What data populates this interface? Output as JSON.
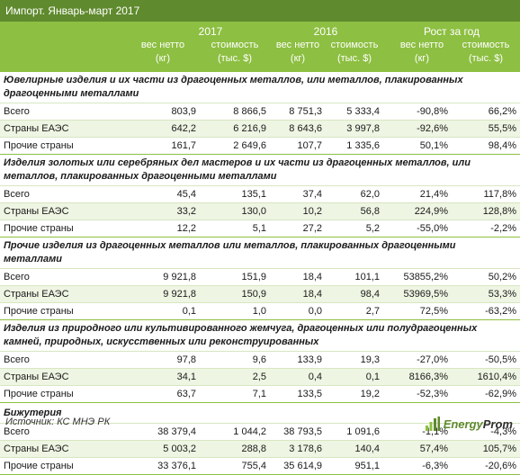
{
  "title": "Импорт. Январь-март 2017",
  "header": {
    "groups": [
      "2017",
      "2016",
      "Рост за год"
    ],
    "col_a": "вес нетто",
    "col_b": "стоимость",
    "unit_a": "(кг)",
    "unit_b": "(тыс. $)"
  },
  "sections": [
    {
      "category": "Ювелирные изделия и их части из драгоценных металлов, или металлов, плакированных драгоценными металлами",
      "rows": [
        {
          "label": "Всего",
          "v": [
            "803,9",
            "8 866,5",
            "8 751,3",
            "5 333,4",
            "-90,8%",
            "66,2%"
          ]
        },
        {
          "label": "Страны ЕАЭС",
          "v": [
            "642,2",
            "6 216,9",
            "8 643,6",
            "3 997,8",
            "-92,6%",
            "55,5%"
          ]
        },
        {
          "label": "Прочие страны",
          "v": [
            "161,7",
            "2 649,6",
            "107,7",
            "1 335,6",
            "50,1%",
            "98,4%"
          ]
        }
      ]
    },
    {
      "category": "Изделия золотых или серебряных дел мастеров и их части из драгоценных металлов, или металлов, плакированных драгоценными металлами",
      "rows": [
        {
          "label": "Всего",
          "v": [
            "45,4",
            "135,1",
            "37,4",
            "62,0",
            "21,4%",
            "117,8%"
          ]
        },
        {
          "label": "Страны ЕАЭС",
          "v": [
            "33,2",
            "130,0",
            "10,2",
            "56,8",
            "224,9%",
            "128,8%"
          ]
        },
        {
          "label": "Прочие страны",
          "v": [
            "12,2",
            "5,1",
            "27,2",
            "5,2",
            "-55,0%",
            "-2,2%"
          ]
        }
      ]
    },
    {
      "category": "Прочие изделия из драгоценных металлов или металлов, плакированных драгоценными металлами",
      "rows": [
        {
          "label": "Всего",
          "v": [
            "9 921,8",
            "151,9",
            "18,4",
            "101,1",
            "53855,2%",
            "50,2%"
          ]
        },
        {
          "label": "Страны ЕАЭС",
          "v": [
            "9 921,8",
            "150,9",
            "18,4",
            "98,4",
            "53969,5%",
            "53,3%"
          ]
        },
        {
          "label": "Прочие страны",
          "v": [
            "0,1",
            "1,0",
            "0,0",
            "2,7",
            "72,5%",
            "-63,2%"
          ]
        }
      ]
    },
    {
      "category": "Изделия из природного или культивированного жемчуга, драгоценных или полудрагоценных камней, природных, искусственных или реконструированных",
      "rows": [
        {
          "label": "Всего",
          "v": [
            "97,8",
            "9,6",
            "133,9",
            "19,3",
            "-27,0%",
            "-50,5%"
          ]
        },
        {
          "label": "Страны ЕАЭС",
          "v": [
            "34,1",
            "2,5",
            "0,4",
            "0,1",
            "8166,3%",
            "1610,4%"
          ]
        },
        {
          "label": "Прочие страны",
          "v": [
            "63,7",
            "7,1",
            "133,5",
            "19,2",
            "-52,3%",
            "-62,9%"
          ]
        }
      ]
    },
    {
      "category": "Бижутерия",
      "rows": [
        {
          "label": "Всего",
          "v": [
            "38 379,4",
            "1 044,2",
            "38 793,5",
            "1 091,6",
            "-1,1%",
            "-4,3%"
          ]
        },
        {
          "label": "Страны ЕАЭС",
          "v": [
            "5 003,2",
            "288,8",
            "3 178,6",
            "140,4",
            "57,4%",
            "105,7%"
          ]
        },
        {
          "label": "Прочие страны",
          "v": [
            "33 376,1",
            "755,4",
            "35 614,9",
            "951,1",
            "-6,3%",
            "-20,6%"
          ]
        }
      ]
    }
  ],
  "footer": {
    "source": "Источник: КС МНЭ РК",
    "logo_a": "Energy",
    "logo_b": "Prom",
    "accent": "#8dbf42",
    "dark_accent": "#5f8a2d"
  }
}
